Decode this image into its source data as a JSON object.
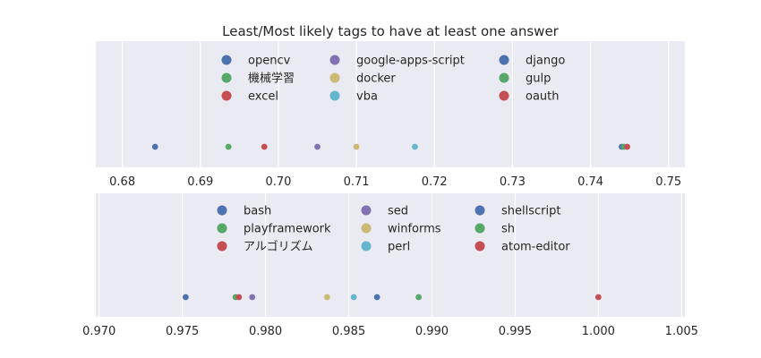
{
  "title": "Least/Most likely tags to have at least one answer",
  "chart_data": [
    {
      "type": "scatter",
      "title": "",
      "xlabel": "",
      "ylabel": "",
      "xlim": [
        0.6766,
        0.7521
      ],
      "ticks": [
        "0.68",
        "0.69",
        "0.70",
        "0.71",
        "0.72",
        "0.73",
        "0.74",
        "0.75"
      ],
      "grid": true,
      "legend_position": "top",
      "series": [
        {
          "name": "opencv",
          "x": 0.6842,
          "color": "#4c72b0"
        },
        {
          "name": "機械学習",
          "x": 0.6936,
          "color": "#55a868"
        },
        {
          "name": "excel",
          "x": 0.6982,
          "color": "#c44e52"
        },
        {
          "name": "google-apps-script",
          "x": 0.705,
          "color": "#8172b2"
        },
        {
          "name": "docker",
          "x": 0.71,
          "color": "#ccb974"
        },
        {
          "name": "vba",
          "x": 0.7175,
          "color": "#64b5cd"
        },
        {
          "name": "django",
          "x": 0.744,
          "color": "#4c72b0"
        },
        {
          "name": "gulp",
          "x": 0.7443,
          "color": "#55a868"
        },
        {
          "name": "oauth",
          "x": 0.7447,
          "color": "#c44e52"
        }
      ]
    },
    {
      "type": "scatter",
      "title": "",
      "xlabel": "",
      "ylabel": "",
      "xlim": [
        0.9698,
        1.0052
      ],
      "ticks": [
        "0.970",
        "0.975",
        "0.980",
        "0.985",
        "0.990",
        "0.995",
        "1.000",
        "1.005"
      ],
      "grid": true,
      "legend_position": "top",
      "series": [
        {
          "name": "bash",
          "x": 0.9752,
          "color": "#4c72b0"
        },
        {
          "name": "playframework",
          "x": 0.9782,
          "color": "#55a868"
        },
        {
          "name": "アルゴリズム",
          "x": 0.9784,
          "color": "#c44e52"
        },
        {
          "name": "sed",
          "x": 0.9792,
          "color": "#8172b2"
        },
        {
          "name": "winforms",
          "x": 0.9837,
          "color": "#ccb974"
        },
        {
          "name": "perl",
          "x": 0.9853,
          "color": "#64b5cd"
        },
        {
          "name": "shellscript",
          "x": 0.9867,
          "color": "#4c72b0"
        },
        {
          "name": "sh",
          "x": 0.9892,
          "color": "#55a868"
        },
        {
          "name": "atom-editor",
          "x": 1.0,
          "color": "#c44e52"
        }
      ]
    }
  ]
}
